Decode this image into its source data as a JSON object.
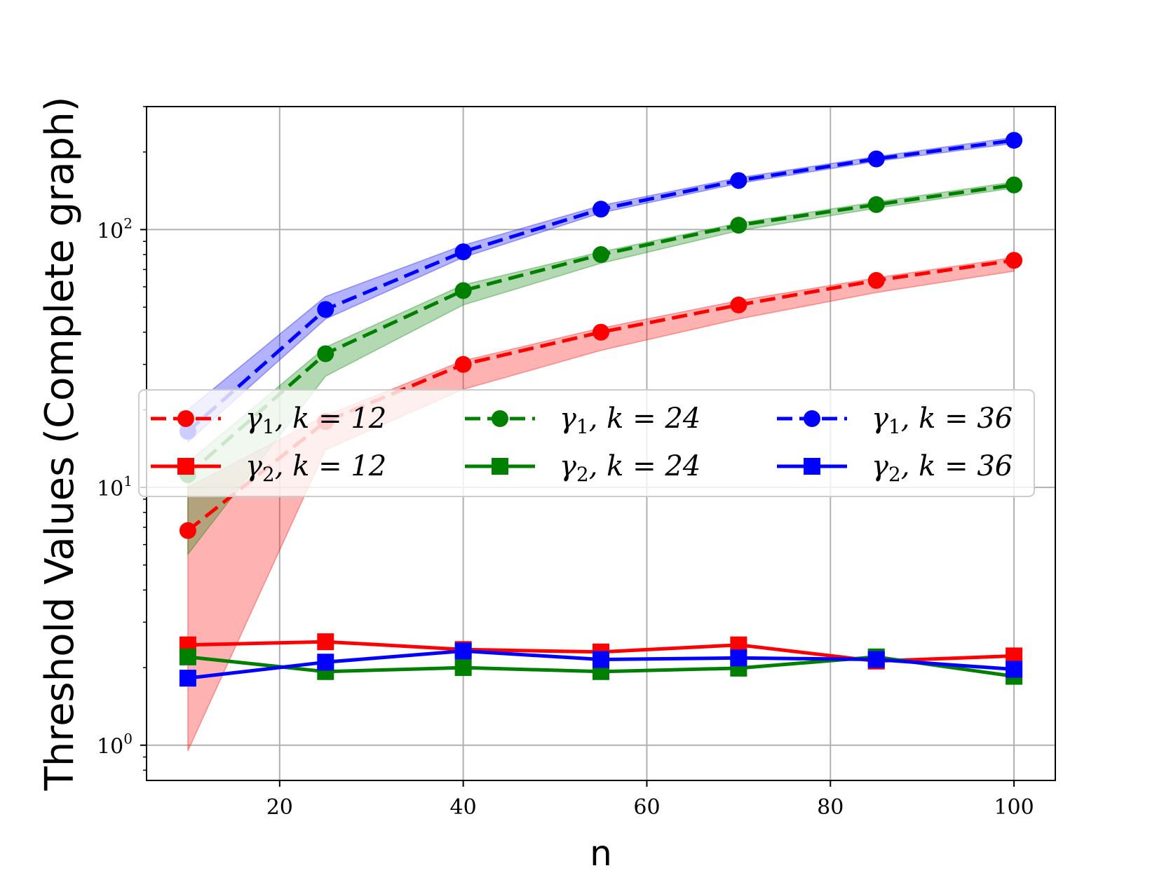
{
  "chart_data": {
    "type": "line",
    "title": "",
    "xlabel": "n",
    "ylabel": "Threshold Values (Complete graph)",
    "y_scale": "log",
    "xlim": [
      5.5,
      104.5
    ],
    "ylim": [
      0.73,
      300
    ],
    "grid": true,
    "legend_placement": "center-left",
    "x_ticks": [
      20,
      40,
      60,
      80,
      100
    ],
    "x_tick_labels": [
      "20",
      "40",
      "60",
      "80",
      "100"
    ],
    "y_ticks": [
      1,
      10,
      100
    ],
    "y_tick_base_labels": [
      "10",
      "10",
      "10"
    ],
    "y_tick_exp_labels": [
      "0",
      "1",
      "2"
    ],
    "x": [
      10,
      25,
      40,
      55,
      70,
      85,
      100
    ],
    "series": [
      {
        "name": "γ₁, k = 12",
        "legend_symbol": "γ",
        "legend_sub": "1",
        "legend_k": "k = 12",
        "color": "#ff0000",
        "dash": true,
        "marker": "circle",
        "values": [
          6.8,
          18,
          30,
          40,
          51,
          63.5,
          76
        ],
        "band_low": [
          0.95,
          14,
          24,
          34,
          45,
          57,
          69
        ],
        "band_high": [
          10,
          19,
          31,
          41.5,
          53,
          65,
          78
        ]
      },
      {
        "name": "γ₂, k = 12",
        "legend_symbol": "γ",
        "legend_sub": "2",
        "legend_k": "k = 12",
        "color": "#ff0000",
        "dash": false,
        "marker": "square",
        "values": [
          2.45,
          2.52,
          2.35,
          2.3,
          2.45,
          2.12,
          2.22
        ]
      },
      {
        "name": "γ₁, k = 24",
        "legend_symbol": "γ",
        "legend_sub": "1",
        "legend_k": "k = 24",
        "color": "#008000",
        "dash": true,
        "marker": "circle",
        "values": [
          11.2,
          33,
          58,
          80,
          104,
          125,
          149
        ],
        "band_low": [
          5.5,
          27,
          51,
          74,
          99,
          121,
          145
        ],
        "band_high": [
          12.5,
          35,
          61,
          82,
          106,
          128,
          153
        ]
      },
      {
        "name": "γ₂, k = 24",
        "legend_symbol": "γ",
        "legend_sub": "2",
        "legend_k": "k = 24",
        "color": "#008000",
        "dash": false,
        "marker": "square",
        "values": [
          2.2,
          1.93,
          2.0,
          1.93,
          1.99,
          2.2,
          1.85
        ]
      },
      {
        "name": "γ₁, k = 36",
        "legend_symbol": "γ",
        "legend_sub": "1",
        "legend_k": "k = 36",
        "color": "#0000ff",
        "dash": true,
        "marker": "circle",
        "values": [
          16.5,
          49,
          82,
          120,
          155,
          188,
          222
        ],
        "band_low": [
          15,
          45,
          78,
          116,
          151,
          184,
          216
        ],
        "band_high": [
          20,
          55,
          87,
          124,
          159,
          192,
          228
        ]
      },
      {
        "name": "γ₂, k = 36",
        "legend_symbol": "γ",
        "legend_sub": "2",
        "legend_k": "k = 36",
        "color": "#0000ff",
        "dash": false,
        "marker": "square",
        "values": [
          1.82,
          2.1,
          2.32,
          2.15,
          2.18,
          2.15,
          1.97
        ]
      }
    ]
  }
}
